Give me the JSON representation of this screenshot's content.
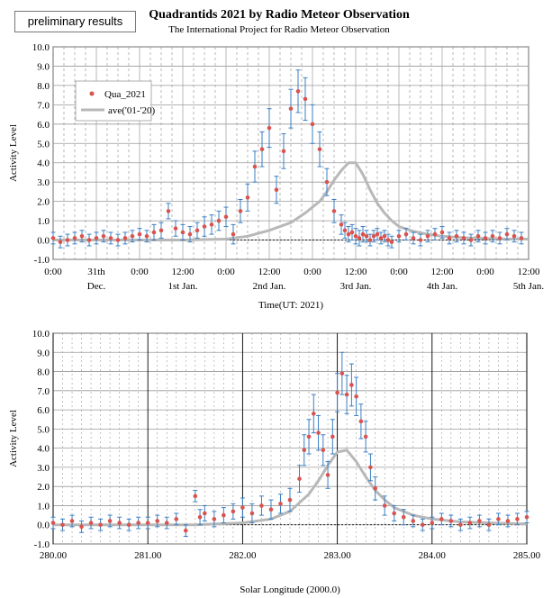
{
  "badge": "preliminary results",
  "title": "Quadrantids 2021 by Radio Meteor Observation",
  "subtitle": "The International Project for Radio Meteor Observation",
  "colors": {
    "observed": "#d9534f",
    "errorbar": "#3a7fc4",
    "average": "#b8b8b8",
    "grid": "#9a9a9a",
    "zero_line": "#000000"
  },
  "chart_data": [
    {
      "type": "scatter",
      "ylabel": "Activity Level",
      "xlabel": "Time(UT: 2021)",
      "ylim": [
        -1.0,
        10.0
      ],
      "yticks": [
        "10.0",
        "9.0",
        "8.0",
        "7.0",
        "6.0",
        "5.0",
        "4.0",
        "3.0",
        "2.0",
        "1.0",
        "0.0",
        "-1.0"
      ],
      "xlim": [
        0,
        132
      ],
      "xtick_positions": [
        0,
        12,
        24,
        36,
        48,
        60,
        72,
        84,
        96,
        108,
        120,
        132
      ],
      "xtick_labels": [
        {
          "hour": "0:00",
          "date": ""
        },
        {
          "hour": "31th",
          "date": "Dec."
        },
        {
          "hour": "0:00",
          "date": ""
        },
        {
          "hour": "12:00",
          "date": "1st Jan."
        },
        {
          "hour": "0:00",
          "date": ""
        },
        {
          "hour": "12:00",
          "date": "2nd Jan."
        },
        {
          "hour": "0:00",
          "date": ""
        },
        {
          "hour": "12:00",
          "date": "3rd Jan."
        },
        {
          "hour": "0:00",
          "date": ""
        },
        {
          "hour": "12:00",
          "date": "4th Jan."
        },
        {
          "hour": "0:00",
          "date": ""
        },
        {
          "hour": "12:00",
          "date": "5th Jan."
        }
      ],
      "legend": {
        "position": "top-left",
        "entries": [
          "Qua_2021",
          "ave('01-'20)"
        ]
      },
      "series": [
        {
          "name": "Qua_2021",
          "style": "points-with-error",
          "x": [
            0,
            2,
            4,
            6,
            8,
            10,
            12,
            14,
            16,
            18,
            20,
            22,
            24,
            26,
            28,
            30,
            32,
            34,
            36,
            38,
            40,
            42,
            44,
            46,
            48,
            50,
            52,
            54,
            56,
            58,
            60,
            62,
            64,
            66,
            68,
            70,
            72,
            74,
            76,
            78,
            80,
            81,
            82,
            83,
            84,
            85,
            86,
            87,
            88,
            89,
            90,
            91,
            92,
            93,
            94,
            96,
            98,
            100,
            102,
            104,
            106,
            108,
            110,
            112,
            114,
            116,
            118,
            120,
            122,
            124,
            126,
            128,
            130
          ],
          "y": [
            0.1,
            -0.1,
            0.0,
            0.1,
            0.2,
            0.0,
            0.1,
            0.2,
            0.1,
            0.0,
            0.1,
            0.2,
            0.3,
            0.2,
            0.4,
            0.5,
            1.5,
            0.6,
            0.4,
            0.3,
            0.5,
            0.7,
            0.8,
            1.0,
            1.2,
            0.3,
            1.5,
            2.2,
            3.8,
            4.7,
            5.8,
            2.6,
            4.6,
            6.8,
            7.7,
            7.3,
            6.0,
            4.7,
            3.0,
            1.5,
            0.8,
            0.5,
            0.3,
            0.4,
            0.2,
            0.1,
            0.3,
            0.2,
            0.0,
            0.2,
            0.3,
            0.1,
            0.2,
            0.0,
            -0.1,
            0.2,
            0.3,
            0.1,
            0.0,
            0.2,
            0.3,
            0.4,
            0.1,
            0.2,
            0.1,
            0.0,
            0.2,
            0.1,
            0.2,
            0.1,
            0.3,
            0.2,
            0.1
          ],
          "err": [
            0.3,
            0.3,
            0.3,
            0.3,
            0.3,
            0.3,
            0.3,
            0.3,
            0.3,
            0.3,
            0.3,
            0.3,
            0.3,
            0.3,
            0.4,
            0.4,
            0.4,
            0.4,
            0.4,
            0.4,
            0.4,
            0.5,
            0.5,
            0.5,
            0.5,
            0.5,
            0.6,
            0.7,
            0.8,
            0.9,
            1.0,
            0.7,
            0.9,
            1.0,
            1.1,
            1.1,
            1.0,
            0.9,
            0.7,
            0.6,
            0.5,
            0.4,
            0.4,
            0.4,
            0.4,
            0.4,
            0.4,
            0.3,
            0.3,
            0.3,
            0.3,
            0.3,
            0.3,
            0.3,
            0.3,
            0.3,
            0.3,
            0.3,
            0.3,
            0.3,
            0.3,
            0.3,
            0.3,
            0.3,
            0.3,
            0.3,
            0.3,
            0.3,
            0.3,
            0.3,
            0.3,
            0.3,
            0.3
          ]
        },
        {
          "name": "ave('01-'20)",
          "style": "line",
          "x": [
            0,
            12,
            24,
            36,
            48,
            54,
            60,
            66,
            70,
            74,
            76,
            78,
            80,
            82,
            84,
            86,
            88,
            90,
            92,
            94,
            96,
            100,
            104,
            108,
            114,
            120,
            126,
            132
          ],
          "y": [
            0.0,
            0.0,
            0.0,
            0.0,
            0.05,
            0.2,
            0.5,
            0.9,
            1.4,
            2.0,
            2.5,
            3.1,
            3.6,
            4.0,
            4.0,
            3.4,
            2.6,
            1.9,
            1.4,
            1.0,
            0.7,
            0.45,
            0.3,
            0.2,
            0.12,
            0.08,
            0.05,
            0.05
          ]
        }
      ]
    },
    {
      "type": "scatter",
      "ylabel": "Activity Level",
      "xlabel": "Solar Longitude  (2000.0)",
      "ylim": [
        -1.0,
        10.0
      ],
      "yticks": [
        "10.0",
        "9.0",
        "8.0",
        "7.0",
        "6.0",
        "5.0",
        "4.0",
        "3.0",
        "2.0",
        "1.0",
        "0.0",
        "-1.0"
      ],
      "xlim": [
        280.0,
        285.0
      ],
      "xtick_positions": [
        280.0,
        281.0,
        282.0,
        283.0,
        284.0,
        285.0
      ],
      "xtick_labels": [
        "280.00",
        "281.00",
        "282.00",
        "283.00",
        "284.00",
        "285.00"
      ],
      "series": [
        {
          "name": "Qua_2021",
          "style": "points-with-error",
          "x": [
            280.0,
            280.1,
            280.2,
            280.3,
            280.4,
            280.5,
            280.6,
            280.7,
            280.8,
            280.9,
            281.0,
            281.1,
            281.2,
            281.3,
            281.4,
            281.5,
            281.55,
            281.6,
            281.7,
            281.8,
            281.9,
            282.0,
            282.1,
            282.2,
            282.3,
            282.4,
            282.5,
            282.6,
            282.65,
            282.7,
            282.75,
            282.8,
            282.85,
            282.9,
            282.95,
            283.0,
            283.05,
            283.1,
            283.15,
            283.2,
            283.25,
            283.3,
            283.35,
            283.4,
            283.5,
            283.6,
            283.7,
            283.8,
            283.9,
            284.0,
            284.1,
            284.2,
            284.3,
            284.4,
            284.5,
            284.6,
            284.7,
            284.8,
            284.9,
            285.0
          ],
          "y": [
            0.1,
            0.0,
            0.2,
            -0.1,
            0.1,
            0.0,
            0.2,
            0.1,
            0.0,
            0.1,
            0.1,
            0.2,
            0.1,
            0.3,
            -0.3,
            1.5,
            0.4,
            0.6,
            0.3,
            0.5,
            0.7,
            0.9,
            0.6,
            1.0,
            0.8,
            1.1,
            1.3,
            2.4,
            3.9,
            4.6,
            5.8,
            4.8,
            3.9,
            2.6,
            4.6,
            6.9,
            7.9,
            6.8,
            7.3,
            6.7,
            5.4,
            4.6,
            3.0,
            1.9,
            1.0,
            0.6,
            0.4,
            0.2,
            0.0,
            0.1,
            0.3,
            0.2,
            0.0,
            0.1,
            0.2,
            0.0,
            0.3,
            0.2,
            0.3,
            0.4
          ],
          "err": [
            0.3,
            0.3,
            0.3,
            0.3,
            0.3,
            0.3,
            0.3,
            0.3,
            0.3,
            0.3,
            0.3,
            0.3,
            0.3,
            0.3,
            0.3,
            0.3,
            0.4,
            0.4,
            0.4,
            0.4,
            0.4,
            0.5,
            0.5,
            0.5,
            0.5,
            0.5,
            0.6,
            0.7,
            0.8,
            0.9,
            1.0,
            0.9,
            0.8,
            0.7,
            0.9,
            1.0,
            1.1,
            1.0,
            1.1,
            1.0,
            0.9,
            0.8,
            0.7,
            0.6,
            0.5,
            0.4,
            0.4,
            0.3,
            0.3,
            0.3,
            0.3,
            0.3,
            0.3,
            0.3,
            0.3,
            0.3,
            0.3,
            0.3,
            0.3,
            0.3
          ]
        },
        {
          "name": "ave('01-'20)",
          "style": "line",
          "x": [
            280.0,
            280.5,
            281.0,
            281.5,
            282.0,
            282.3,
            282.5,
            282.7,
            282.8,
            282.9,
            283.0,
            283.1,
            283.2,
            283.3,
            283.4,
            283.5,
            283.6,
            283.8,
            284.0,
            284.3,
            284.6,
            285.0
          ],
          "y": [
            0.0,
            0.0,
            0.0,
            0.0,
            0.1,
            0.3,
            0.7,
            1.6,
            2.3,
            3.1,
            3.8,
            3.9,
            3.3,
            2.5,
            1.8,
            1.3,
            0.9,
            0.5,
            0.3,
            0.15,
            0.1,
            0.05
          ]
        }
      ]
    }
  ]
}
